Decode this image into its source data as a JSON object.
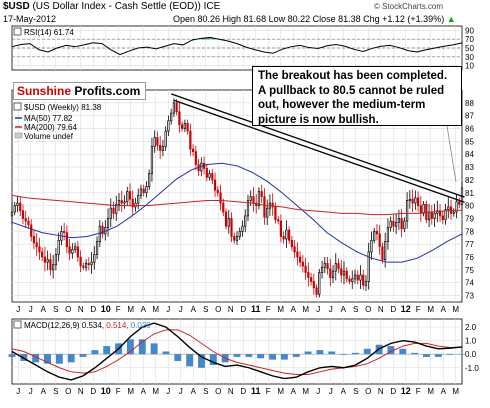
{
  "header": {
    "symbol": "$USD",
    "name": "(US Dollar Index - Cash Settle (EOD))",
    "exchange": "ICE",
    "date": "17-May-2012",
    "ohlc": "Open 80.26  High 81.68  Low 80.22  Close 81.38  Chg +1.12 (+1.39%)",
    "change_arrow": "▲",
    "credit": "© StockCharts.com"
  },
  "brand": {
    "part1": "Sunshine ",
    "part2": "Profits.com"
  },
  "annotation": "The breakout has been completed. A pullback to 80.5 cannot be ruled out, however the medium-term picture is now bullish.",
  "colors": {
    "up": "#000000",
    "down": "#cc0000",
    "ma50": "#2233aa",
    "ma200": "#cc2222",
    "macd": "#000000",
    "signal": "#cc2222",
    "histogram": "#4488cc",
    "rsi": "#000000",
    "rsi_fill": "#33aa33"
  },
  "chart_data": [
    {
      "type": "line",
      "title": "RSI(14) 61.74",
      "ylim": [
        0,
        100
      ],
      "y_ticks": [
        10,
        30,
        50,
        70,
        90
      ],
      "tick_labels": [
        "10",
        "30",
        "50",
        "70",
        "90"
      ],
      "reference_lines": [
        30,
        50,
        70
      ],
      "grid": true,
      "values": [
        53,
        58,
        60,
        46,
        41,
        50,
        56,
        53,
        57,
        62,
        60,
        46,
        35,
        43,
        50,
        52,
        48,
        54,
        60,
        57,
        68,
        72,
        74,
        70,
        66,
        60,
        52,
        46,
        41,
        38,
        47,
        53,
        56,
        51,
        49,
        55,
        58,
        54,
        47,
        42,
        49,
        54,
        56,
        51,
        44,
        41,
        46,
        50,
        54,
        57,
        61.74
      ]
    },
    {
      "type": "candlestick",
      "title": "$USD (Weekly) 81.38",
      "ylim": [
        72.5,
        89
      ],
      "y_ticks": [
        73,
        74,
        75,
        76,
        77,
        78,
        79,
        80,
        81,
        82,
        83,
        84,
        85,
        86,
        87,
        88
      ],
      "tick_labels": [
        "73",
        "74",
        "75",
        "76",
        "77",
        "78",
        "79",
        "80",
        "81",
        "82",
        "83",
        "84",
        "85",
        "86",
        "87",
        "88"
      ],
      "x_tick_labels": [
        "J",
        "J",
        "A",
        "S",
        "O",
        "N",
        "D",
        "10",
        "F",
        "M",
        "A",
        "M",
        "J",
        "J",
        "A",
        "S",
        "O",
        "N",
        "D",
        "11",
        "F",
        "M",
        "A",
        "M",
        "J",
        "J",
        "A",
        "S",
        "O",
        "N",
        "D",
        "12",
        "F",
        "M",
        "A",
        "M"
      ],
      "year_tick_labels": [
        "10",
        "11",
        "12"
      ],
      "grid": true,
      "close": [
        79.5,
        80.0,
        80.2,
        79.6,
        79.0,
        78.8,
        78.5,
        77.6,
        77.1,
        76.8,
        76.4,
        76.0,
        75.6,
        75.8,
        75.0,
        75.4,
        76.2,
        77.3,
        78.0,
        77.9,
        76.8,
        76.3,
        76.6,
        76.8,
        76.0,
        75.3,
        75.2,
        75.5,
        75.4,
        75.6,
        76.2,
        77.2,
        78.4,
        77.8,
        78.3,
        79.0,
        79.8,
        79.4,
        80.1,
        80.4,
        80.2,
        80.3,
        81.1,
        80.5,
        79.9,
        80.2,
        80.8,
        81.3,
        81.0,
        81.5,
        82.5,
        84.6,
        85.3,
        84.7,
        84.3,
        84.6,
        85.8,
        86.6,
        87.2,
        88.0,
        87.3,
        86.3,
        86.0,
        86.4,
        85.8,
        84.4,
        84.2,
        83.2,
        82.7,
        83.3,
        82.9,
        82.2,
        82.5,
        82.0,
        81.2,
        81.0,
        80.2,
        79.5,
        78.4,
        79.0,
        77.6,
        77.3,
        77.6,
        78.0,
        78.4,
        79.2,
        80.4,
        80.7,
        80.2,
        80.0,
        81.1,
        80.7,
        79.1,
        79.8,
        80.2,
        79.9,
        78.9,
        78.8,
        77.6,
        77.4,
        78.1,
        77.3,
        76.8,
        76.4,
        76.0,
        75.6,
        75.3,
        74.8,
        74.4,
        74.1,
        73.6,
        73.1,
        74.8,
        75.2,
        75.5,
        75.1,
        74.4,
        74.9,
        75.5,
        75.1,
        74.6,
        74.9,
        74.3,
        74.1,
        74.3,
        74.6,
        74.2,
        74.6,
        73.8,
        74.1,
        76.4,
        77.3,
        78.0,
        77.8,
        76.8,
        75.8,
        77.2,
        78.3,
        78.8,
        78.4,
        78.7,
        79.0,
        78.2,
        78.8,
        80.4,
        80.5,
        80.2,
        80.6,
        80.0,
        79.4,
        80.1,
        78.9,
        79.5,
        79.0,
        79.4,
        79.6,
        79.2,
        78.9,
        79.7,
        79.9,
        79.4,
        79.5,
        80.3,
        80.1,
        81.38
      ],
      "series": [
        {
          "name": "MA(50) 77.82",
          "values": [
            78.7,
            78.3,
            77.9,
            77.7,
            77.5,
            77.6,
            77.9,
            78.4,
            79.2,
            80.1,
            81.1,
            82.1,
            82.8,
            83.2,
            83.3,
            83.1,
            82.6,
            81.9,
            81.0,
            80.0,
            79.0,
            77.9,
            77.1,
            76.4,
            75.9,
            75.6,
            75.6,
            75.9,
            76.5,
            77.2,
            77.8
          ]
        },
        {
          "name": "MA(200) 79.64",
          "values": [
            80.8,
            80.6,
            80.5,
            80.4,
            80.3,
            80.2,
            80.1,
            80.0,
            80.0,
            80.0,
            80.1,
            80.2,
            80.3,
            80.4,
            80.4,
            80.3,
            80.2,
            80.0,
            79.9,
            79.7,
            79.6,
            79.5,
            79.4,
            79.4,
            79.3,
            79.3,
            79.4,
            79.4,
            79.5,
            79.6,
            79.64
          ]
        },
        {
          "name": "Volume undef",
          "values": []
        }
      ],
      "trend_lines": [
        {
          "from": {
            "week": 58,
            "value": 88.7
          },
          "to": {
            "week": 162,
            "value": 80.6
          }
        },
        {
          "from": {
            "week": 59,
            "value": 88.2
          },
          "to": {
            "week": 162,
            "value": 80.2
          }
        }
      ]
    },
    {
      "type": "line",
      "title": "MACD(12,26,9)",
      "values_label": {
        "macd": "0.534",
        "signal": "0.514",
        "histogram": "0.020"
      },
      "ylim": [
        -2.2,
        2.6
      ],
      "y_ticks": [
        -1.0,
        0.0,
        1.0,
        2.0
      ],
      "tick_labels": [
        "-1.0",
        "0.0",
        "1.0",
        "2.0"
      ],
      "grid": true,
      "x_tick_labels": [
        "J",
        "J",
        "A",
        "S",
        "O",
        "N",
        "D",
        "10",
        "F",
        "M",
        "A",
        "M",
        "J",
        "J",
        "A",
        "S",
        "O",
        "N",
        "D",
        "11",
        "F",
        "M",
        "A",
        "M",
        "J",
        "J",
        "A",
        "S",
        "O",
        "N",
        "D",
        "12",
        "F",
        "M",
        "A",
        "M"
      ],
      "series": [
        {
          "name": "MACD",
          "values": [
            0.2,
            -0.3,
            -0.8,
            -1.3,
            -1.7,
            -1.9,
            -1.6,
            -1.0,
            -0.3,
            0.4,
            1.3,
            2.0,
            2.3,
            2.0,
            1.3,
            0.5,
            -0.2,
            -0.6,
            -0.9,
            -0.8,
            -1.0,
            -1.3,
            -1.6,
            -1.8,
            -1.7,
            -1.3,
            -1.0,
            -0.9,
            -1.0,
            -0.8,
            -0.3,
            0.4,
            0.8,
            1.0,
            0.9,
            0.6,
            0.4,
            0.45,
            0.534
          ]
        },
        {
          "name": "Signal",
          "values": [
            0.4,
            0.2,
            -0.2,
            -0.6,
            -1.0,
            -1.3,
            -1.4,
            -1.3,
            -0.9,
            -0.4,
            0.2,
            0.9,
            1.5,
            1.8,
            1.8,
            1.4,
            0.8,
            0.2,
            -0.3,
            -0.6,
            -0.8,
            -1.0,
            -1.2,
            -1.4,
            -1.5,
            -1.5,
            -1.3,
            -1.1,
            -1.0,
            -0.9,
            -0.7,
            -0.3,
            0.2,
            0.6,
            0.8,
            0.8,
            0.6,
            0.5,
            0.514
          ]
        },
        {
          "name": "Histogram",
          "values": [
            -0.2,
            -0.5,
            -0.6,
            -0.7,
            -0.7,
            -0.6,
            -0.2,
            0.3,
            0.6,
            0.8,
            1.1,
            1.1,
            0.8,
            0.2,
            -0.5,
            -0.9,
            -1.0,
            -0.8,
            -0.6,
            -0.2,
            -0.2,
            -0.3,
            -0.4,
            -0.4,
            -0.2,
            0.2,
            0.3,
            0.2,
            0.0,
            0.1,
            0.4,
            0.7,
            0.6,
            0.4,
            0.1,
            -0.2,
            -0.2,
            -0.05,
            0.02
          ]
        }
      ]
    }
  ]
}
